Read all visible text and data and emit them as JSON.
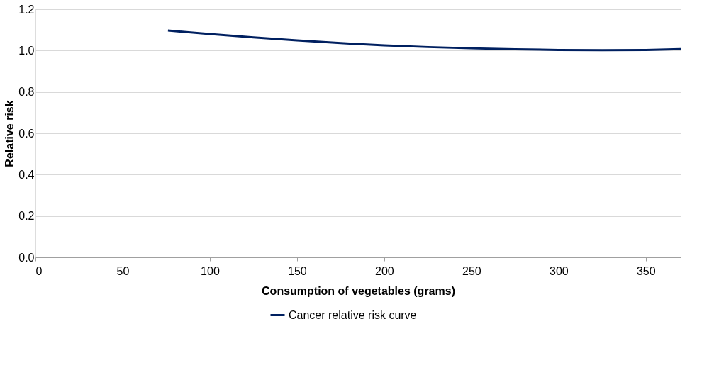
{
  "chart_data": {
    "type": "line",
    "xlabel": "Consumption of vegetables (grams)",
    "ylabel": "Relative risk",
    "x": [
      76,
      100,
      125,
      150,
      175,
      200,
      225,
      250,
      275,
      300,
      325,
      350,
      370
    ],
    "series": [
      {
        "name": "Cancer relative risk curve",
        "color": "#002060",
        "values": [
          1.097,
          1.08,
          1.064,
          1.049,
          1.036,
          1.025,
          1.017,
          1.011,
          1.006,
          1.003,
          1.002,
          1.003,
          1.007
        ]
      }
    ],
    "xlim": [
      0,
      370
    ],
    "xticks": [
      0,
      50,
      100,
      150,
      200,
      250,
      300,
      350
    ],
    "ylim": [
      0,
      1.2
    ],
    "yticks": [
      {
        "value": 0,
        "label": "0.0"
      },
      0.2,
      0.4,
      0.6,
      0.8,
      {
        "value": 1,
        "label": "1.0"
      },
      1.2
    ],
    "grid": "y",
    "legend": "bottom",
    "marker": "none",
    "line_style": "solid"
  }
}
